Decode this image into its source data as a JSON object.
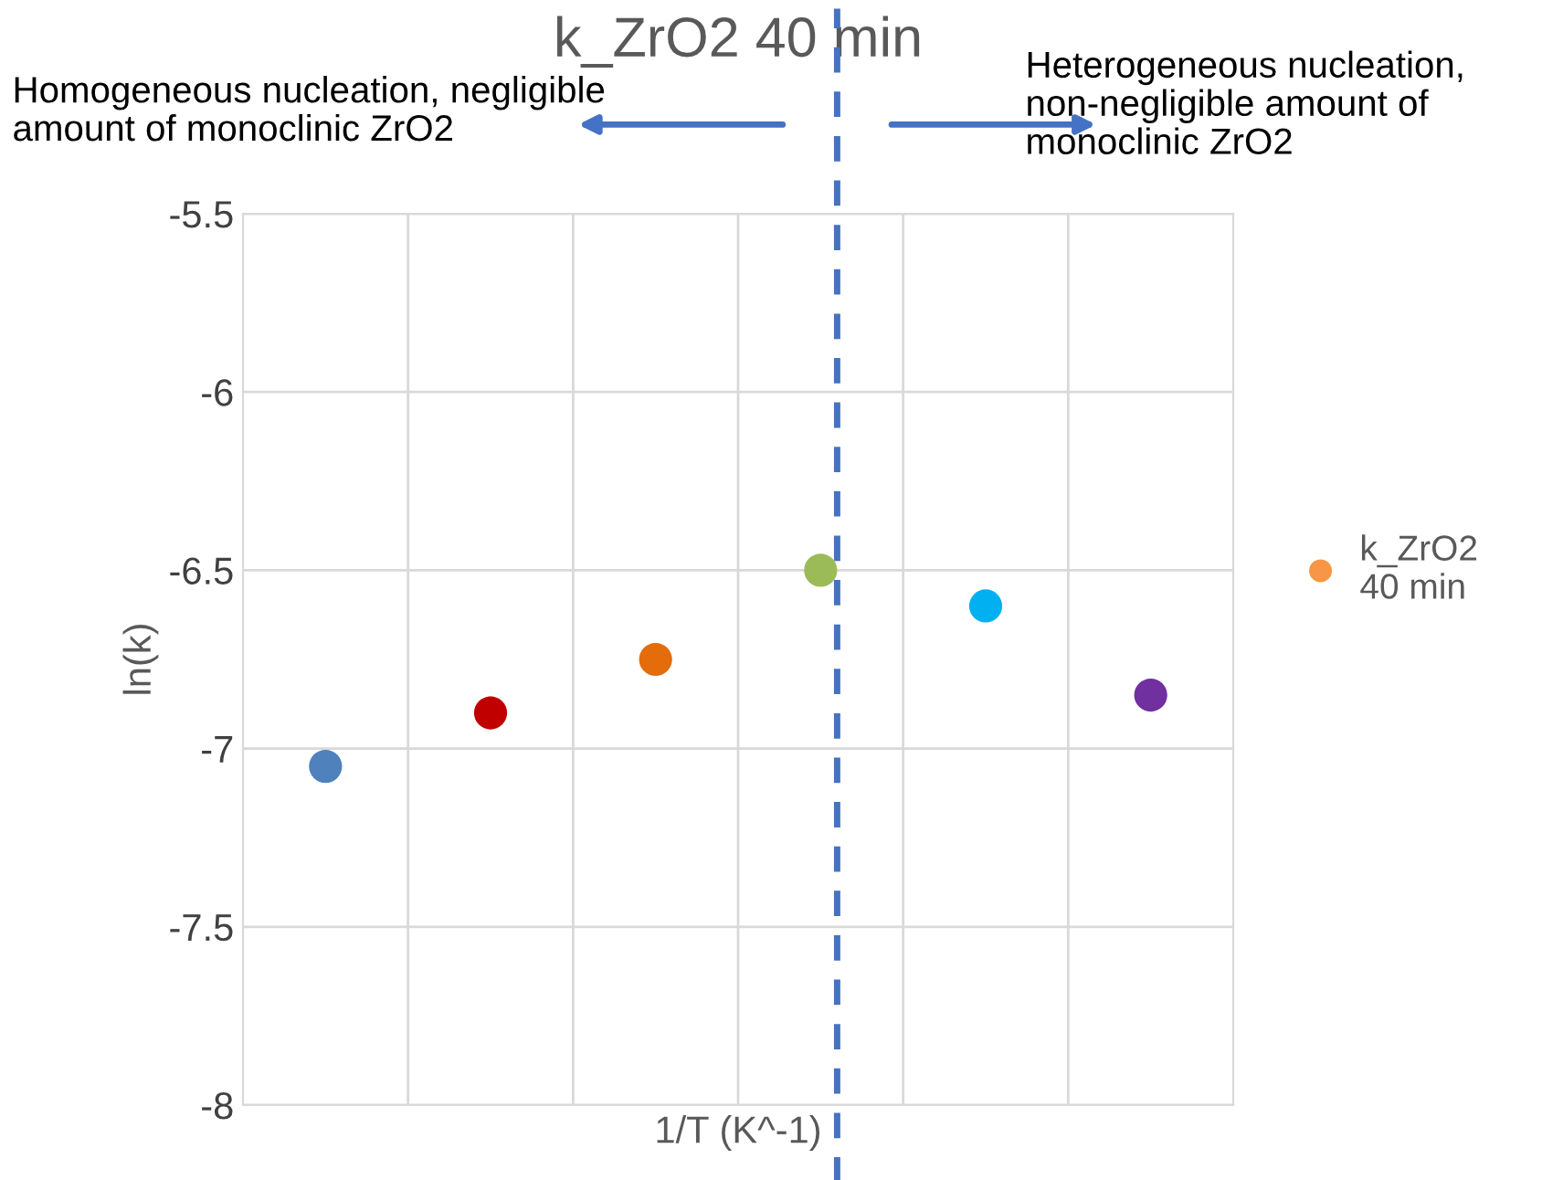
{
  "chart_data": {
    "type": "scatter",
    "title": "k_ZrO2 40 min",
    "xlabel": "1/T (K^-1)",
    "ylabel": "ln(k)",
    "categories": [
      null,
      null,
      null,
      null,
      null,
      null
    ],
    "series": [
      {
        "name": "k_ZrO2\n40 min",
        "color": "#f79646",
        "colors": [
          "#4f81bd",
          "#c00000",
          "#e46c0a",
          "#9bbb59",
          "#00b0f0",
          "#7030a0"
        ],
        "values": [
          -7.05,
          -6.9,
          -6.75,
          -6.5,
          -6.6,
          -6.85
        ]
      }
    ],
    "ylim": [
      -8,
      -5.5
    ],
    "yticks": [
      -8,
      -7.5,
      -7,
      -6.5,
      -6,
      -5.5
    ],
    "annotations": [
      "Homogeneous nucleation, negligible\namount of monoclinic ZrO2",
      "Heterogeneous nucleation,\nnon-negligible amount of\nmonoclinic ZrO2"
    ],
    "grid": true,
    "legend": "right",
    "marker": "circle"
  }
}
